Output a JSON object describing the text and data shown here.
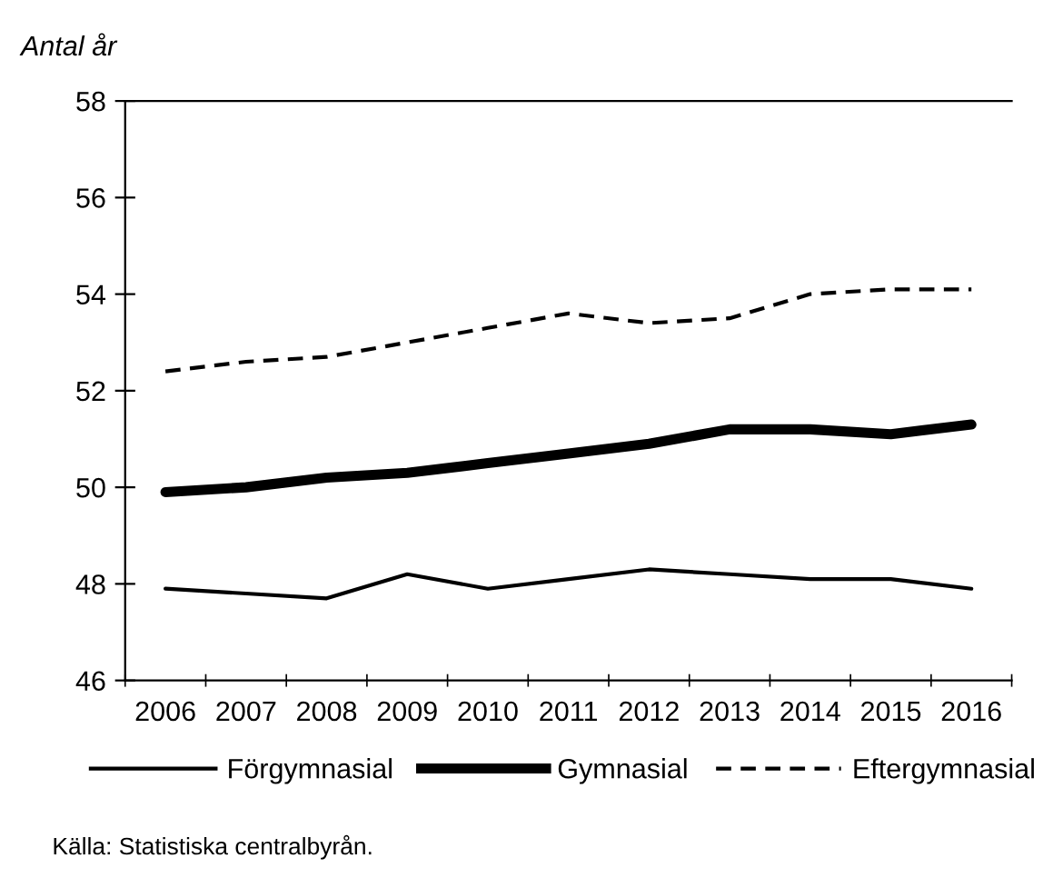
{
  "chart_data": {
    "type": "line",
    "ylabel": "Antal år",
    "categories": [
      "2006",
      "2007",
      "2008",
      "2009",
      "2010",
      "2011",
      "2012",
      "2013",
      "2014",
      "2015",
      "2016"
    ],
    "series": [
      {
        "name": "Förgymnasial",
        "color": "#000000",
        "line_style": "solid",
        "values": [
          47.9,
          47.8,
          47.7,
          48.2,
          47.9,
          48.1,
          48.3,
          48.2,
          48.1,
          48.1,
          47.9
        ]
      },
      {
        "name": "Gymnasial",
        "color": "#000000",
        "line_style": "solid",
        "values": [
          49.9,
          50.0,
          50.2,
          50.3,
          50.5,
          50.7,
          50.9,
          51.2,
          51.2,
          51.1,
          51.3
        ]
      },
      {
        "name": "Eftergymnasial",
        "color": "#000000",
        "line_style": "dashed",
        "values": [
          52.4,
          52.6,
          52.7,
          53.0,
          53.3,
          53.6,
          53.4,
          53.5,
          54.0,
          54.1,
          54.1
        ]
      }
    ],
    "ylim": [
      46,
      58
    ],
    "yticks": [
      46,
      48,
      50,
      52,
      54,
      56,
      58
    ],
    "grid": false,
    "legend": "bottom",
    "marker": "none",
    "annotations": [
      "Källa: Statistiska centralbyrån."
    ]
  }
}
